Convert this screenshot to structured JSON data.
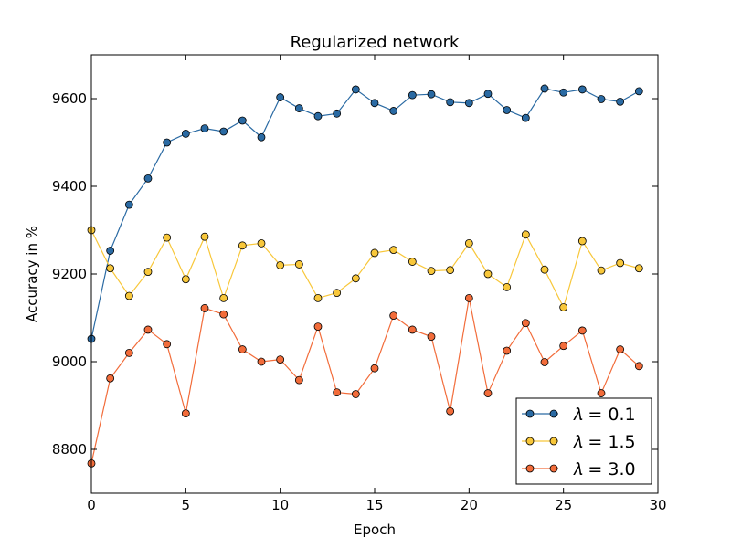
{
  "chart_data": {
    "type": "line",
    "title": "Regularized network",
    "xlabel": "Epoch",
    "ylabel": "Accuracy in %",
    "xlim": [
      0,
      30
    ],
    "ylim": [
      8700,
      9700
    ],
    "xticks": [
      0,
      5,
      10,
      15,
      20,
      25,
      30
    ],
    "yticks": [
      8800,
      9000,
      9200,
      9400,
      9600
    ],
    "grid": false,
    "legend_position": "bottom-right",
    "x": [
      0,
      1,
      2,
      3,
      4,
      5,
      6,
      7,
      8,
      9,
      10,
      11,
      12,
      13,
      14,
      15,
      16,
      17,
      18,
      19,
      20,
      21,
      22,
      23,
      24,
      25,
      26,
      27,
      28,
      29
    ],
    "series": [
      {
        "name": "𝜆 = 0.1",
        "color": "#2a6aa3",
        "values": [
          9052,
          9253,
          9358,
          9418,
          9500,
          9520,
          9532,
          9525,
          9550,
          9512,
          9603,
          9578,
          9560,
          9566,
          9621,
          9590,
          9572,
          9608,
          9610,
          9592,
          9590,
          9611,
          9574,
          9556,
          9623,
          9614,
          9621,
          9599,
          9593,
          9617
        ]
      },
      {
        "name": "𝜆 = 1.5",
        "color": "#f8c73a",
        "values": [
          9300,
          9213,
          9150,
          9205,
          9283,
          9188,
          9285,
          9145,
          9265,
          9270,
          9220,
          9222,
          9145,
          9157,
          9190,
          9248,
          9255,
          9228,
          9207,
          9209,
          9270,
          9200,
          9170,
          9290,
          9210,
          9124,
          9275,
          9208,
          9225,
          9213
        ]
      },
      {
        "name": "𝜆 = 3.0",
        "color": "#f26c3a",
        "values": [
          8768,
          8962,
          9020,
          9073,
          9040,
          8882,
          9122,
          9108,
          9028,
          9000,
          9005,
          8958,
          9080,
          8930,
          8926,
          8985,
          9105,
          9073,
          9057,
          8887,
          9145,
          8928,
          9025,
          9088,
          8999,
          9036,
          9071,
          8928,
          9028,
          8990
        ]
      }
    ]
  }
}
